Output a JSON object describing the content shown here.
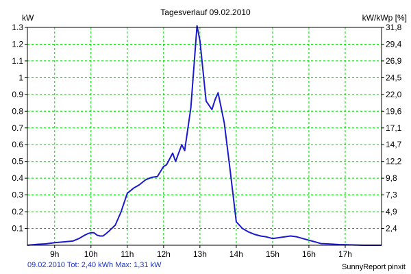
{
  "chart_data": {
    "type": "line",
    "title": "Tagesverlauf 09.02.2010",
    "ylabel_left": "kW",
    "ylabel_right": "kW/kWp [%]",
    "xlim": [
      8.25,
      18.0
    ],
    "ylim": [
      0,
      1.3
    ],
    "x_ticks": [
      9,
      10,
      11,
      12,
      13,
      14,
      15,
      16,
      17
    ],
    "x_tick_labels": [
      "9h",
      "10h",
      "11h",
      "12h",
      "13h",
      "14h",
      "15h",
      "16h",
      "17h"
    ],
    "y_ticks": [
      0.1,
      0.2,
      0.3,
      0.4,
      0.5,
      0.6,
      0.7,
      0.8,
      0.9,
      1.0,
      1.1,
      1.2,
      1.3
    ],
    "y_tick_labels": [
      "0.1",
      "0.2",
      "0.3",
      "0.4",
      "0.5",
      "0.6",
      "0.7",
      "0.8",
      "0.9",
      "1",
      "1.1",
      "1.2",
      "1.3"
    ],
    "right_tick_labels": [
      "2,4",
      "4,9",
      "7,3",
      "9,8",
      "12,2",
      "14,7",
      "17,1",
      "19,6",
      "22,0",
      "24,5",
      "26,9",
      "29,4",
      "31,8"
    ],
    "grid": true,
    "series": [
      {
        "color": "#1a1acc",
        "x": [
          8.25,
          8.5,
          8.75,
          9.0,
          9.25,
          9.5,
          9.67,
          9.83,
          9.92,
          10.0,
          10.08,
          10.17,
          10.25,
          10.33,
          10.42,
          10.5,
          10.67,
          10.83,
          11.0,
          11.17,
          11.33,
          11.5,
          11.67,
          11.83,
          12.0,
          12.08,
          12.25,
          12.33,
          12.5,
          12.58,
          12.75,
          12.92,
          13.0,
          13.17,
          13.33,
          13.42,
          13.5,
          13.67,
          13.83,
          14.0,
          14.17,
          14.33,
          14.5,
          14.67,
          14.83,
          15.0,
          15.17,
          15.33,
          15.5,
          15.67,
          15.83,
          16.0,
          16.17,
          16.33,
          16.5,
          16.67,
          16.83,
          17.0,
          17.17,
          17.33,
          17.5,
          17.75,
          18.0
        ],
        "y": [
          0.0,
          0.005,
          0.008,
          0.015,
          0.02,
          0.025,
          0.04,
          0.06,
          0.07,
          0.075,
          0.075,
          0.06,
          0.055,
          0.055,
          0.07,
          0.085,
          0.12,
          0.2,
          0.31,
          0.34,
          0.36,
          0.39,
          0.405,
          0.41,
          0.47,
          0.48,
          0.55,
          0.5,
          0.6,
          0.565,
          0.82,
          1.31,
          1.22,
          0.86,
          0.81,
          0.87,
          0.91,
          0.73,
          0.45,
          0.14,
          0.1,
          0.08,
          0.065,
          0.055,
          0.05,
          0.04,
          0.045,
          0.05,
          0.055,
          0.05,
          0.04,
          0.03,
          0.02,
          0.01,
          0.008,
          0.006,
          0.004,
          0.003,
          0.002,
          0.001,
          0.0,
          0.0,
          0.0
        ]
      }
    ]
  },
  "footer": {
    "left": "09.02.2010 Tot: 2,40 kWh Max: 1,31 kW",
    "right": "SunnyReport pinxit"
  },
  "colors": {
    "grid": "#00cc00",
    "axis": "#000000",
    "line": "#1a1acc",
    "footer_left": "#1a33cc"
  }
}
